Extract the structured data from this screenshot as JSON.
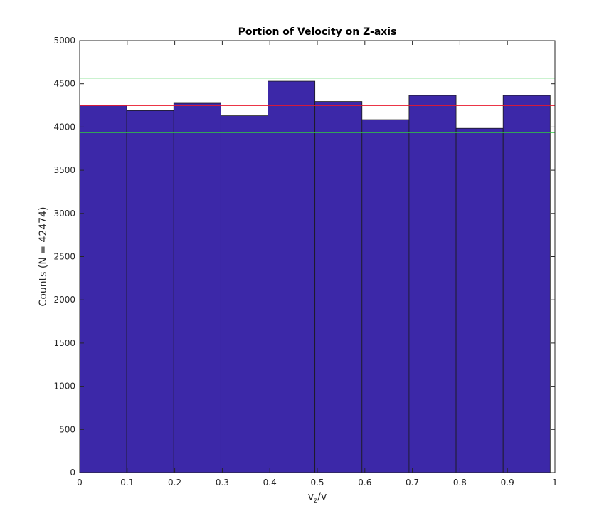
{
  "chart_data": {
    "type": "bar",
    "title": "Portion of Velocity on Z-axis",
    "xlabel_main": "v",
    "xlabel_sub": "z",
    "xlabel_tail": "/v",
    "ylabel": "Counts (N = 42474)",
    "xlim": [
      0,
      1
    ],
    "ylim": [
      0,
      5000
    ],
    "x_ticks": [
      "0",
      "0.1",
      "0.2",
      "0.3",
      "0.4",
      "0.5",
      "0.6",
      "0.7",
      "0.8",
      "0.9",
      "1"
    ],
    "y_ticks": [
      "0",
      "500",
      "1000",
      "1500",
      "2000",
      "2500",
      "3000",
      "3500",
      "4000",
      "4500",
      "5000"
    ],
    "bin_edges": [
      0,
      0.099,
      0.198,
      0.297,
      0.396,
      0.495,
      0.594,
      0.693,
      0.792,
      0.891,
      0.99
    ],
    "values": [
      4255,
      4190,
      4275,
      4130,
      4530,
      4295,
      4085,
      4365,
      3985,
      4365
    ],
    "reference_lines": [
      {
        "value": 4565,
        "color": "#2ecc40"
      },
      {
        "value": 4247,
        "color": "#e8192c"
      },
      {
        "value": 3935,
        "color": "#2ecc40"
      }
    ],
    "bar_color": "#3c28a8",
    "bar_edge_color": "#1a1a1a",
    "grid": false
  }
}
